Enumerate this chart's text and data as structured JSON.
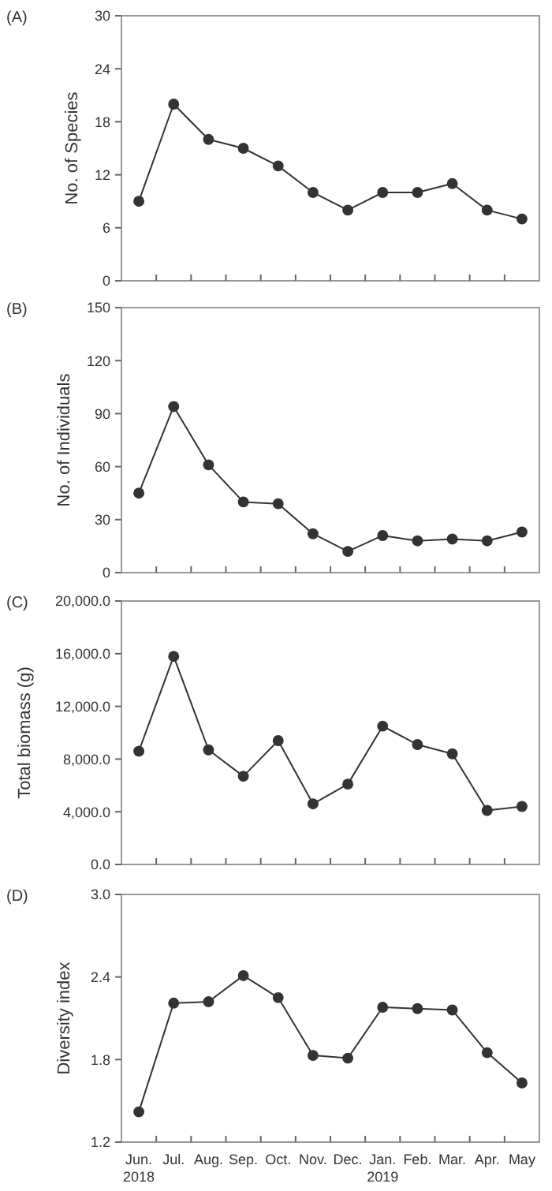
{
  "chart_data": [
    {
      "type": "line",
      "title": "(A)",
      "ylabel": "No. of Species",
      "categories": [
        null,
        null,
        null,
        null,
        null,
        null,
        null,
        null,
        null,
        null,
        null,
        null
      ],
      "tick_labels": "y",
      "marker": "circle",
      "grid": false,
      "series": [
        {
          "color": "#333333",
          "values": [
            9,
            20,
            16,
            15,
            13,
            10,
            8,
            10,
            10,
            11,
            8,
            7
          ]
        }
      ],
      "ylim": [
        0,
        30
      ],
      "yticks": [
        0,
        6,
        12,
        18,
        24,
        30
      ]
    },
    {
      "type": "line",
      "title": "(B)",
      "ylabel": "No. of Individuals",
      "categories": [
        null,
        null,
        null,
        null,
        null,
        null,
        null,
        null,
        null,
        null,
        null,
        null
      ],
      "tick_labels": "y",
      "marker": "circle",
      "grid": false,
      "series": [
        {
          "color": "#333333",
          "values": [
            45,
            94,
            61,
            40,
            39,
            22,
            12,
            21,
            18,
            19,
            18,
            23
          ]
        }
      ],
      "ylim": [
        0,
        150
      ],
      "yticks": [
        0,
        30,
        60,
        90,
        120,
        150
      ]
    },
    {
      "type": "line",
      "title": "(C)",
      "ylabel": "Total biomass (g)",
      "categories": [
        null,
        null,
        null,
        null,
        null,
        null,
        null,
        null,
        null,
        null,
        null,
        null
      ],
      "tick_labels": "y",
      "marker": "circle",
      "grid": false,
      "series": [
        {
          "color": "#333333",
          "values": [
            8600,
            15800,
            8700,
            6700,
            9400,
            4600,
            6100,
            10500,
            9100,
            8400,
            4100,
            4400
          ]
        }
      ],
      "ylim": [
        0,
        20000
      ],
      "yticks": [
        {
          "value": 0,
          "label": "0.0"
        },
        {
          "value": 4000,
          "label": "4,000.0"
        },
        {
          "value": 8000,
          "label": "8,000.0"
        },
        {
          "value": 12000,
          "label": "12,000.0"
        },
        {
          "value": 16000,
          "label": "16,000.0"
        },
        {
          "value": 20000,
          "label": "20,000.0"
        }
      ]
    },
    {
      "type": "line",
      "title": "(D)",
      "ylabel": "Diversity index",
      "categories": [
        "Jun.\n2018",
        "Jul.",
        "Aug.",
        "Sep.",
        "Oct.",
        "Nov.",
        "Dec.",
        "Jan.\n2019",
        "Feb.",
        "Mar.",
        "Apr.",
        "May"
      ],
      "marker": "circle",
      "grid": false,
      "series": [
        {
          "color": "#333333",
          "values": [
            1.42,
            2.21,
            2.22,
            2.41,
            2.25,
            1.83,
            1.81,
            2.18,
            2.17,
            2.16,
            1.85,
            1.63
          ]
        }
      ],
      "ylim": [
        1.2,
        3.0
      ],
      "yticks": [
        {
          "value": 1.2,
          "label": "1.2"
        },
        {
          "value": 1.8,
          "label": "1.8"
        },
        {
          "value": 2.4,
          "label": "2.4"
        },
        {
          "value": 3.0,
          "label": "3.0"
        }
      ]
    }
  ]
}
